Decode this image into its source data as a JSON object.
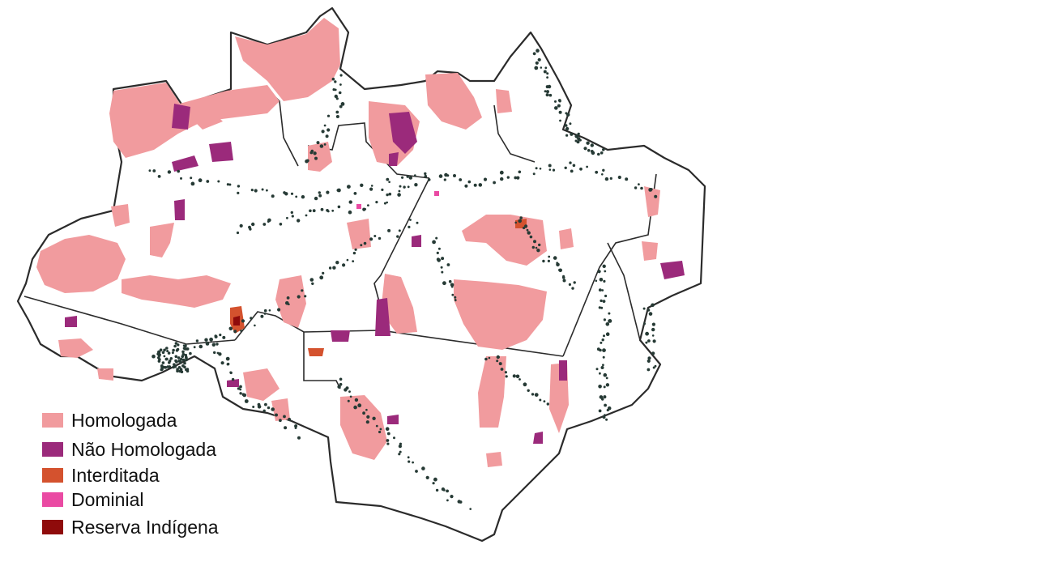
{
  "map": {
    "colors": {
      "background": "#ffffff",
      "outline": "#2b2b2b",
      "points": "#263a35",
      "homologada": "#f19b9e",
      "nao_homologada": "#9b2a7b",
      "interditada": "#d4522e",
      "dominial": "#ea4aa3",
      "reserva_indigena": "#8f0b0b"
    }
  },
  "legend": {
    "items": [
      {
        "label": "Homologada",
        "color": "#f19b9e"
      },
      {
        "label": "Não Homologada",
        "color": "#9b2a7b"
      },
      {
        "label": "Interditada",
        "color": "#d4522e"
      },
      {
        "label": "Dominial",
        "color": "#ea4aa3"
      },
      {
        "label": "Reserva Indígena",
        "color": "#8f0b0b"
      }
    ]
  }
}
